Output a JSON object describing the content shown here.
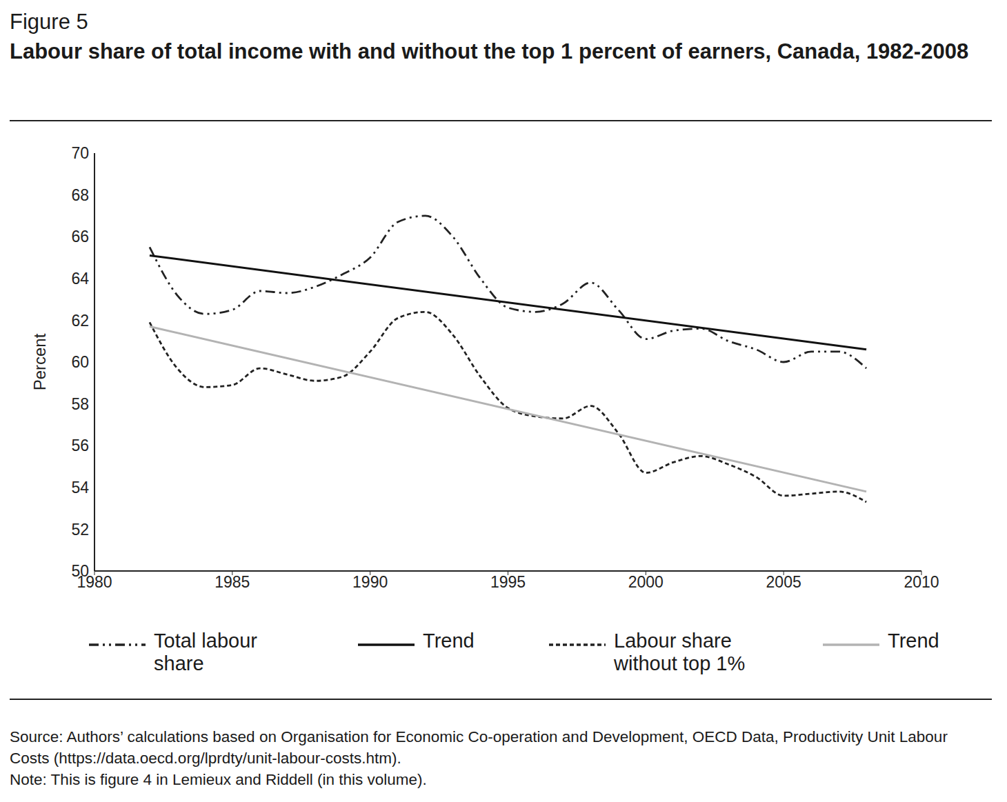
{
  "chart_data": {
    "type": "line",
    "figure_label": "Figure 5",
    "title": "Labour share of total income with and without the top 1 percent of earners, Canada, 1982-2008",
    "y_label": "Percent",
    "source": "Source: Authors’ calculations based on Organisation for Economic Co-operation and Development, OECD Data, Productivity Unit Labour Costs (https://data.oecd.org/lprdty/unit-labour-costs.htm).",
    "note": "Note: This is figure 4 in Lemieux and Riddell (in this volume).",
    "x": [
      1982,
      1983,
      1984,
      1985,
      1986,
      1987,
      1988,
      1989,
      1990,
      1991,
      1992,
      1993,
      1994,
      1995,
      1996,
      1997,
      1998,
      1999,
      2000,
      2001,
      2002,
      2003,
      2004,
      2005,
      2006,
      2007,
      2008
    ],
    "xlim": [
      1980,
      2010
    ],
    "xticks": [
      1980,
      1985,
      1990,
      1995,
      2000,
      2005,
      2010
    ],
    "ylim": [
      50,
      70
    ],
    "yticks": [
      50,
      52,
      54,
      56,
      58,
      60,
      62,
      64,
      66,
      68,
      70
    ],
    "grid": false,
    "legend": "bottom",
    "series": [
      {
        "name": "Total labour share",
        "color": "#222222",
        "line_style": "dashdot",
        "values": [
          65.5,
          63.2,
          62.3,
          62.5,
          63.4,
          63.3,
          63.6,
          64.2,
          65.0,
          66.7,
          67.0,
          66.0,
          64.0,
          62.6,
          62.4,
          62.8,
          63.8,
          62.5,
          61.1,
          61.5,
          61.6,
          61.0,
          60.6,
          60.0,
          60.5,
          60.5,
          59.7
        ]
      },
      {
        "name": "Trend",
        "color": "#111111",
        "line_style": "solid",
        "x": [
          1982,
          2008
        ],
        "values": [
          65.1,
          60.6
        ]
      },
      {
        "name": "Labour share without top 1%",
        "color": "#222222",
        "line_style": "dashed",
        "values": [
          61.9,
          59.7,
          58.8,
          58.9,
          59.7,
          59.4,
          59.1,
          59.3,
          60.5,
          62.1,
          62.4,
          61.3,
          59.3,
          57.8,
          57.4,
          57.3,
          57.9,
          56.6,
          54.7,
          55.2,
          55.5,
          55.1,
          54.5,
          53.6,
          53.7,
          53.8,
          53.3
        ]
      },
      {
        "name": "Trend",
        "color": "#b3b3b3",
        "line_style": "solid",
        "x": [
          1982,
          2008
        ],
        "values": [
          61.7,
          53.8
        ]
      }
    ]
  }
}
